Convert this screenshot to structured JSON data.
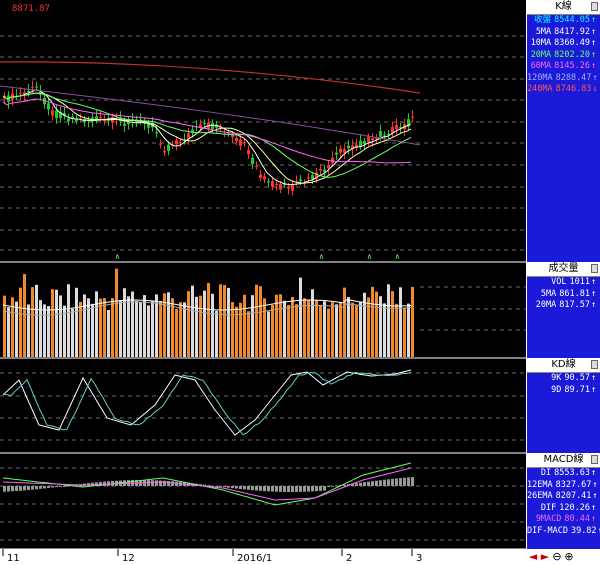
{
  "colors": {
    "background": "#000000",
    "panel": "#1a1ad8",
    "up": "#ff3030",
    "down": "#22cc22",
    "vol_orange": "#f08a30",
    "vol_white": "#dcdcdc",
    "grid": "#8a8a8a"
  },
  "top_left_label": "8871.87",
  "panels": [
    {
      "id": "kline",
      "title": "K線",
      "rows": [
        {
          "label": "收盤",
          "value": "8544.05",
          "arrow": "↑",
          "color": "#00ffff"
        },
        {
          "label": "5MA",
          "value": "8417.92",
          "arrow": "↑",
          "color": "#ffffff"
        },
        {
          "label": "10MA",
          "value": "8360.49",
          "arrow": "↑",
          "color": "#ffffff"
        },
        {
          "label": "20MA",
          "value": "8202.20",
          "arrow": "↑",
          "color": "#66ff66"
        },
        {
          "label": "60MA",
          "value": "8145.26",
          "arrow": "↑",
          "color": "#ff66ff"
        },
        {
          "label": "120MA",
          "value": "8288.47",
          "arrow": "↑",
          "color": "#aaaaff"
        },
        {
          "label": "240MA",
          "value": "8746.83",
          "arrow": "↓",
          "color": "#ff5555"
        }
      ]
    },
    {
      "id": "volume",
      "title": "成交量",
      "rows": [
        {
          "label": "VOL",
          "value": "1011",
          "arrow": "↑",
          "color": "#ffffff"
        },
        {
          "label": "5MA",
          "value": "861.81",
          "arrow": "↑",
          "color": "#ffffff"
        },
        {
          "label": "20MA",
          "value": "817.57",
          "arrow": "↑",
          "color": "#ffffff"
        }
      ]
    },
    {
      "id": "kd",
      "title": "KD線",
      "rows": [
        {
          "label": "9K",
          "value": "90.57",
          "arrow": "↑",
          "color": "#ffffff"
        },
        {
          "label": "9D",
          "value": "89.71",
          "arrow": "↑",
          "color": "#ffffff"
        }
      ]
    },
    {
      "id": "macd",
      "title": "MACD線",
      "rows": [
        {
          "label": "DI",
          "value": "8553.63",
          "arrow": "↑",
          "color": "#ffffff"
        },
        {
          "label": "12EMA",
          "value": "8327.67",
          "arrow": "↑",
          "color": "#ffffff"
        },
        {
          "label": "26EMA",
          "value": "8207.41",
          "arrow": "↑",
          "color": "#ffffff"
        },
        {
          "label": "DIF",
          "value": "120.26",
          "arrow": "↑",
          "color": "#ffffff"
        },
        {
          "label": "9MACD",
          "value": "80.44",
          "arrow": "↑",
          "color": "#ff66ff"
        },
        {
          "label": "DIF-MACD",
          "value": "39.82",
          "arrow": "↑",
          "color": "#ffffff"
        }
      ]
    }
  ],
  "date_labels": [
    "11",
    "12",
    "2016/1",
    "2",
    "3"
  ],
  "nav": {
    "prev": "◄",
    "next": "►",
    "zoom_in": "⊕",
    "zoom_out": "⊖"
  }
}
